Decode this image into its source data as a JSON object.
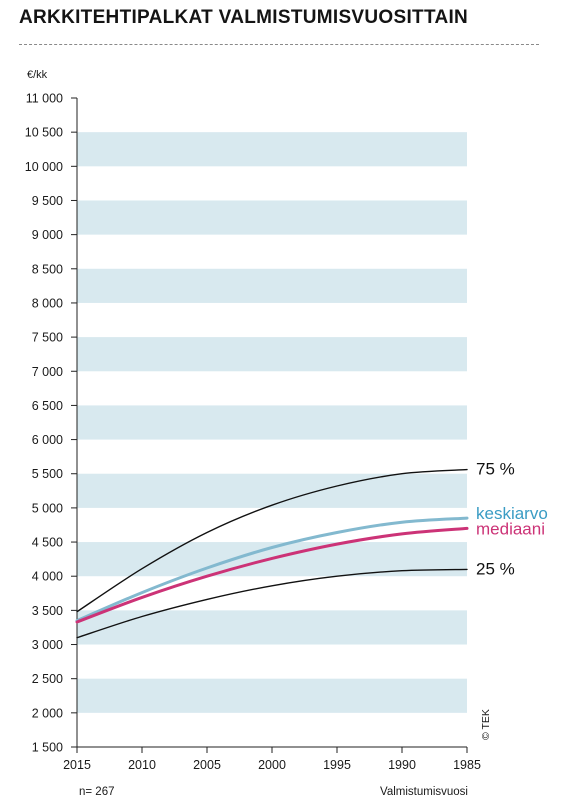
{
  "title": "ARKKITEHTIPALKAT VALMISTUMISVUOSITTAIN",
  "copyright": "© TEK",
  "sample_note": "n= 267",
  "colors": {
    "band": "#d8e9ef",
    "p75": "#111111",
    "p25": "#111111",
    "mean": "#83b9cf",
    "median": "#cc3377",
    "mean_label": "#3a9cc4",
    "median_label": "#cc3377"
  },
  "chart_data": {
    "type": "line",
    "ylabel": "€/kk",
    "xlabel": "Valmistumisvuosi",
    "ylim": [
      1500,
      11000
    ],
    "yticks": [
      1500,
      2000,
      2500,
      3000,
      3500,
      4000,
      4500,
      5000,
      5500,
      6000,
      6500,
      7000,
      7500,
      8000,
      8500,
      9000,
      9500,
      10000,
      10500,
      11000
    ],
    "ytick_labels": [
      "1 500",
      "2 000",
      "2 500",
      "3 000",
      "3 500",
      "4 000",
      "4 500",
      "5 000",
      "5 500",
      "6 000",
      "6 500",
      "7 000",
      "7 500",
      "8 000",
      "8 500",
      "9 000",
      "9 500",
      "10 000",
      "10 500",
      "11 000"
    ],
    "x": [
      2015,
      2010,
      2005,
      2000,
      1995,
      1990,
      1985
    ],
    "x_labels": [
      "2015",
      "2010",
      "2005",
      "2000",
      "1995",
      "1990",
      "1985"
    ],
    "grid": "alternating horizontal bands",
    "series": [
      {
        "key": "p75",
        "name": "75 %",
        "values": [
          3480,
          4110,
          4640,
          5040,
          5320,
          5500,
          5560
        ]
      },
      {
        "key": "mean",
        "name": "keskiarvo",
        "values": [
          3350,
          3760,
          4120,
          4420,
          4640,
          4790,
          4850
        ]
      },
      {
        "key": "median",
        "name": "mediaani",
        "values": [
          3330,
          3690,
          4000,
          4260,
          4470,
          4620,
          4700
        ]
      },
      {
        "key": "p25",
        "name": "25 %",
        "values": [
          3100,
          3410,
          3660,
          3860,
          4000,
          4080,
          4100
        ]
      }
    ]
  }
}
